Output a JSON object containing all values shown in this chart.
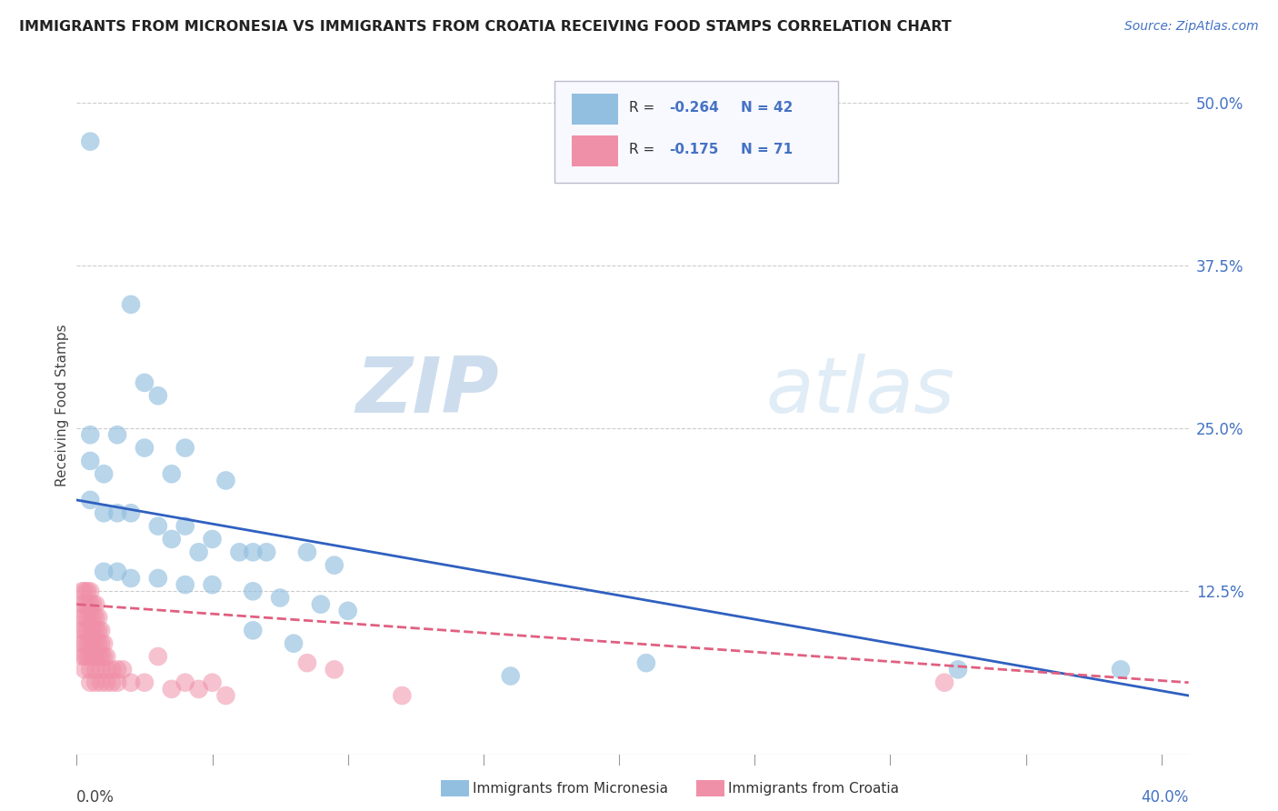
{
  "title": "IMMIGRANTS FROM MICRONESIA VS IMMIGRANTS FROM CROATIA RECEIVING FOOD STAMPS CORRELATION CHART",
  "source": "Source: ZipAtlas.com",
  "ylabel": "Receiving Food Stamps",
  "ytick_vals": [
    0.0,
    0.125,
    0.25,
    0.375,
    0.5
  ],
  "ytick_labels": [
    "",
    "12.5%",
    "25.0%",
    "37.5%",
    "50.0%"
  ],
  "micronesia_color": "#92bfe0",
  "croatia_color": "#f090a8",
  "trend_micronesia_color": "#3060c0",
  "trend_croatia_color": "#e06080",
  "background_color": "#ffffff",
  "xlim": [
    0.0,
    0.41
  ],
  "ylim": [
    0.0,
    0.535
  ],
  "mic_trend_x0": 0.0,
  "mic_trend_y0": 0.195,
  "mic_trend_x1": 0.41,
  "mic_trend_y1": 0.045,
  "cro_trend_x0": 0.0,
  "cro_trend_y0": 0.115,
  "cro_trend_x1": 0.41,
  "cro_trend_y1": 0.055,
  "micronesia_points": [
    [
      0.005,
      0.47
    ],
    [
      0.02,
      0.345
    ],
    [
      0.025,
      0.285
    ],
    [
      0.03,
      0.275
    ],
    [
      0.005,
      0.245
    ],
    [
      0.015,
      0.245
    ],
    [
      0.025,
      0.235
    ],
    [
      0.04,
      0.235
    ],
    [
      0.005,
      0.225
    ],
    [
      0.01,
      0.215
    ],
    [
      0.035,
      0.215
    ],
    [
      0.055,
      0.21
    ],
    [
      0.005,
      0.195
    ],
    [
      0.01,
      0.185
    ],
    [
      0.015,
      0.185
    ],
    [
      0.02,
      0.185
    ],
    [
      0.03,
      0.175
    ],
    [
      0.04,
      0.175
    ],
    [
      0.035,
      0.165
    ],
    [
      0.05,
      0.165
    ],
    [
      0.045,
      0.155
    ],
    [
      0.06,
      0.155
    ],
    [
      0.065,
      0.155
    ],
    [
      0.07,
      0.155
    ],
    [
      0.085,
      0.155
    ],
    [
      0.095,
      0.145
    ],
    [
      0.01,
      0.14
    ],
    [
      0.015,
      0.14
    ],
    [
      0.02,
      0.135
    ],
    [
      0.03,
      0.135
    ],
    [
      0.04,
      0.13
    ],
    [
      0.05,
      0.13
    ],
    [
      0.065,
      0.125
    ],
    [
      0.075,
      0.12
    ],
    [
      0.09,
      0.115
    ],
    [
      0.1,
      0.11
    ],
    [
      0.065,
      0.095
    ],
    [
      0.08,
      0.085
    ],
    [
      0.21,
      0.07
    ],
    [
      0.325,
      0.065
    ],
    [
      0.16,
      0.06
    ],
    [
      0.385,
      0.065
    ]
  ],
  "croatia_points": [
    [
      0.002,
      0.125
    ],
    [
      0.003,
      0.125
    ],
    [
      0.004,
      0.125
    ],
    [
      0.005,
      0.125
    ],
    [
      0.002,
      0.115
    ],
    [
      0.003,
      0.115
    ],
    [
      0.004,
      0.115
    ],
    [
      0.005,
      0.115
    ],
    [
      0.006,
      0.115
    ],
    [
      0.007,
      0.115
    ],
    [
      0.002,
      0.105
    ],
    [
      0.003,
      0.105
    ],
    [
      0.004,
      0.105
    ],
    [
      0.005,
      0.105
    ],
    [
      0.006,
      0.105
    ],
    [
      0.007,
      0.105
    ],
    [
      0.008,
      0.105
    ],
    [
      0.002,
      0.095
    ],
    [
      0.003,
      0.095
    ],
    [
      0.004,
      0.095
    ],
    [
      0.005,
      0.095
    ],
    [
      0.006,
      0.095
    ],
    [
      0.007,
      0.095
    ],
    [
      0.008,
      0.095
    ],
    [
      0.009,
      0.095
    ],
    [
      0.002,
      0.085
    ],
    [
      0.003,
      0.085
    ],
    [
      0.004,
      0.085
    ],
    [
      0.005,
      0.085
    ],
    [
      0.006,
      0.085
    ],
    [
      0.007,
      0.085
    ],
    [
      0.008,
      0.085
    ],
    [
      0.009,
      0.085
    ],
    [
      0.01,
      0.085
    ],
    [
      0.002,
      0.075
    ],
    [
      0.003,
      0.075
    ],
    [
      0.004,
      0.075
    ],
    [
      0.005,
      0.075
    ],
    [
      0.006,
      0.075
    ],
    [
      0.007,
      0.075
    ],
    [
      0.008,
      0.075
    ],
    [
      0.009,
      0.075
    ],
    [
      0.01,
      0.075
    ],
    [
      0.011,
      0.075
    ],
    [
      0.003,
      0.065
    ],
    [
      0.005,
      0.065
    ],
    [
      0.007,
      0.065
    ],
    [
      0.009,
      0.065
    ],
    [
      0.011,
      0.065
    ],
    [
      0.013,
      0.065
    ],
    [
      0.015,
      0.065
    ],
    [
      0.017,
      0.065
    ],
    [
      0.005,
      0.055
    ],
    [
      0.007,
      0.055
    ],
    [
      0.009,
      0.055
    ],
    [
      0.011,
      0.055
    ],
    [
      0.013,
      0.055
    ],
    [
      0.015,
      0.055
    ],
    [
      0.02,
      0.055
    ],
    [
      0.025,
      0.055
    ],
    [
      0.03,
      0.075
    ],
    [
      0.05,
      0.055
    ],
    [
      0.085,
      0.07
    ],
    [
      0.095,
      0.065
    ],
    [
      0.035,
      0.05
    ],
    [
      0.04,
      0.055
    ],
    [
      0.045,
      0.05
    ],
    [
      0.055,
      0.045
    ],
    [
      0.12,
      0.045
    ],
    [
      0.32,
      0.055
    ]
  ]
}
